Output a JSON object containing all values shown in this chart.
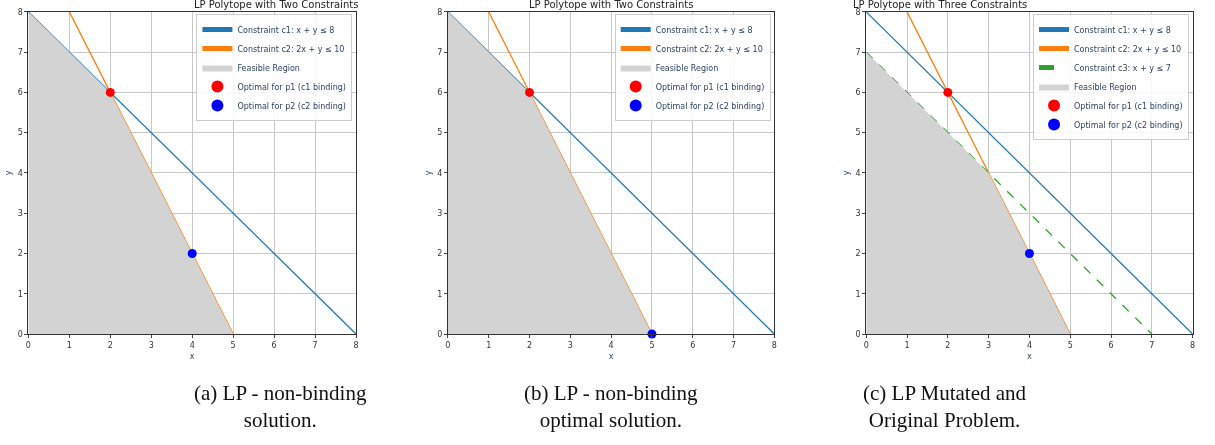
{
  "chart_data": [
    {
      "type": "line",
      "title": "LP Polytope with Two Constraints",
      "xlabel": "x",
      "ylabel": "y",
      "xlim": [
        0,
        8
      ],
      "ylim": [
        0,
        8
      ],
      "xticks": [
        0,
        1,
        2,
        3,
        4,
        5,
        6,
        7,
        8
      ],
      "yticks": [
        0,
        1,
        2,
        3,
        4,
        5,
        6,
        7,
        8
      ],
      "grid": true,
      "legend": "top right",
      "annotations": [
        "(a) LP - non-binding solution."
      ],
      "series": [
        {
          "name": "Constraint c1: x + y ≤ 8",
          "color": "#1f77b4",
          "x": [
            0,
            8
          ],
          "values": [
            8,
            0
          ]
        },
        {
          "name": "Constraint c2: 2x + y ≤ 10",
          "color": "#ff7f0e",
          "x": [
            1,
            5
          ],
          "values": [
            8,
            0
          ]
        },
        {
          "name": "Feasible Region",
          "type": "area",
          "color": "#d3d3d3",
          "x": [
            0,
            0,
            2,
            5
          ],
          "values": [
            0,
            8,
            6,
            0
          ]
        },
        {
          "name": "Optimal for p1 (c1 binding)",
          "type": "scatter",
          "color": "#ff0000",
          "x": [
            2
          ],
          "values": [
            6
          ]
        },
        {
          "name": "Optimal for p2 (c2 binding)",
          "type": "scatter",
          "color": "#0000ff",
          "x": [
            4
          ],
          "values": [
            2
          ]
        }
      ]
    },
    {
      "type": "line",
      "title": "LP Polytope with Two Constraints",
      "xlabel": "x",
      "ylabel": "y",
      "xlim": [
        0,
        8
      ],
      "ylim": [
        0,
        8
      ],
      "xticks": [
        0,
        1,
        2,
        3,
        4,
        5,
        6,
        7,
        8
      ],
      "yticks": [
        0,
        1,
        2,
        3,
        4,
        5,
        6,
        7,
        8
      ],
      "grid": true,
      "legend": "top right",
      "annotations": [
        "(b) LP - non-binding optimal solution."
      ],
      "series": [
        {
          "name": "Constraint c1: x + y ≤ 8",
          "color": "#1f77b4",
          "x": [
            0,
            8
          ],
          "values": [
            8,
            0
          ]
        },
        {
          "name": "Constraint c2: 2x + y ≤ 10",
          "color": "#ff7f0e",
          "x": [
            1,
            5
          ],
          "values": [
            8,
            0
          ]
        },
        {
          "name": "Feasible Region",
          "type": "area",
          "color": "#d3d3d3",
          "x": [
            0,
            0,
            2,
            5
          ],
          "values": [
            0,
            8,
            6,
            0
          ]
        },
        {
          "name": "Optimal for p1 (c1 binding)",
          "type": "scatter",
          "color": "#ff0000",
          "x": [
            2
          ],
          "values": [
            6
          ]
        },
        {
          "name": "Optimal for p2 (c2 binding)",
          "type": "scatter",
          "color": "#0000ff",
          "x": [
            5
          ],
          "values": [
            0
          ]
        }
      ]
    },
    {
      "type": "line",
      "title": "LP Polytope with Three Constraints",
      "xlabel": "x",
      "ylabel": "y",
      "xlim": [
        0,
        8
      ],
      "ylim": [
        0,
        8
      ],
      "xticks": [
        0,
        1,
        2,
        3,
        4,
        5,
        6,
        7,
        8
      ],
      "yticks": [
        0,
        1,
        2,
        3,
        4,
        5,
        6,
        7,
        8
      ],
      "grid": true,
      "legend": "top right",
      "annotations": [
        "(c) LP Mutated and Original Problem."
      ],
      "series": [
        {
          "name": "Constraint c1: x + y ≤ 8",
          "color": "#1f77b4",
          "x": [
            0,
            8
          ],
          "values": [
            8,
            0
          ]
        },
        {
          "name": "Constraint c2: 2x + y ≤ 10",
          "color": "#ff7f0e",
          "x": [
            1,
            5
          ],
          "values": [
            8,
            0
          ]
        },
        {
          "name": "Constraint c3: x + y ≤ 7",
          "color": "#2ca02c",
          "line_style": "dashed",
          "x": [
            0,
            7
          ],
          "values": [
            7,
            0
          ]
        },
        {
          "name": "Feasible Region",
          "type": "area",
          "color": "#d3d3d3",
          "x": [
            0,
            0,
            3,
            5
          ],
          "values": [
            0,
            7,
            4,
            0
          ]
        },
        {
          "name": "Optimal for p1 (c1 binding)",
          "type": "scatter",
          "color": "#ff0000",
          "x": [
            2
          ],
          "values": [
            6
          ]
        },
        {
          "name": "Optimal for p2 (c2 binding)",
          "type": "scatter",
          "color": "#0000ff",
          "x": [
            4
          ],
          "values": [
            2
          ]
        }
      ]
    }
  ]
}
